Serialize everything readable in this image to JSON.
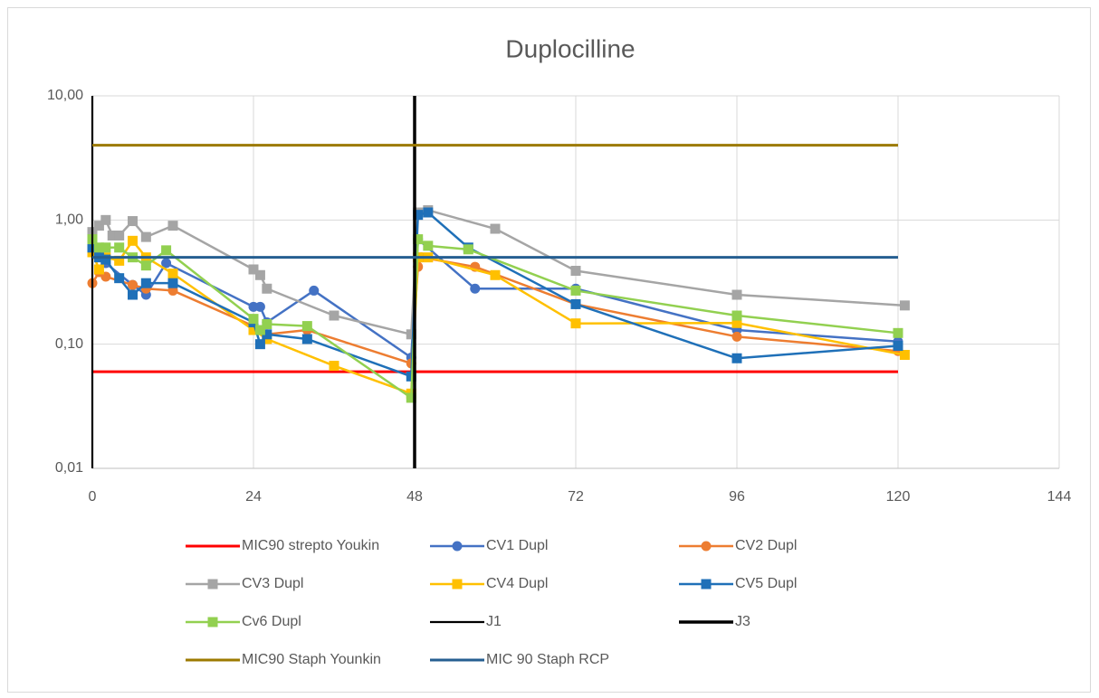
{
  "chart_data": {
    "type": "line",
    "title": "Duplocilline",
    "ylog": true,
    "grid": true,
    "legend": "bottom",
    "xlim": [
      0,
      144
    ],
    "xticks": [
      0,
      24,
      48,
      72,
      96,
      120,
      144
    ],
    "ylim": [
      0.01,
      10
    ],
    "yticks": [
      {
        "value": 10,
        "label": "10,00"
      },
      {
        "value": 1,
        "label": "1,00"
      },
      {
        "value": 0.1,
        "label": "0,10"
      },
      {
        "value": 0.01,
        "label": "0,01"
      }
    ],
    "series": [
      {
        "name": "MIC90 strepto Youkin",
        "color": "#ff0000",
        "width": 3,
        "x": [
          0,
          120
        ],
        "values": [
          0.06,
          0.06
        ]
      },
      {
        "name": "CV1 Dupl",
        "color": "#4472c4",
        "width": 2.5,
        "marker": "circle",
        "x": [
          0,
          1,
          2,
          6,
          8,
          11,
          24,
          25,
          26,
          33,
          47.5,
          48.5,
          57,
          72,
          96,
          120
        ],
        "values": [
          0.65,
          0.55,
          0.45,
          0.3,
          0.25,
          0.45,
          0.2,
          0.2,
          0.15,
          0.27,
          0.078,
          0.7,
          0.28,
          0.28,
          0.13,
          0.105
        ]
      },
      {
        "name": "CV2 Dupl",
        "color": "#ed7d31",
        "width": 2.5,
        "marker": "circle",
        "x": [
          0,
          1,
          2,
          6,
          8,
          12,
          24,
          26,
          32,
          47.5,
          48.5,
          49,
          57,
          72,
          96,
          120
        ],
        "values": [
          0.31,
          0.38,
          0.35,
          0.3,
          0.28,
          0.27,
          0.14,
          0.12,
          0.13,
          0.07,
          0.42,
          0.5,
          0.42,
          0.21,
          0.115,
          0.088
        ]
      },
      {
        "name": "CV3 Dupl",
        "color": "#a5a5a5",
        "width": 2.5,
        "marker": "square",
        "x": [
          0,
          1,
          2,
          3,
          4,
          6,
          8,
          12,
          24,
          25,
          26,
          36,
          47.5,
          48.5,
          50,
          60,
          72,
          96,
          121
        ],
        "values": [
          0.8,
          0.9,
          1.0,
          0.75,
          0.75,
          0.98,
          0.73,
          0.9,
          0.4,
          0.36,
          0.28,
          0.17,
          0.12,
          1.15,
          1.2,
          0.85,
          0.39,
          0.25,
          0.205
        ]
      },
      {
        "name": "CV4 Dupl",
        "color": "#ffc000",
        "width": 2.5,
        "marker": "square",
        "x": [
          0,
          1,
          2,
          4,
          6,
          8,
          12,
          24,
          26,
          36,
          47.5,
          48.5,
          50,
          60,
          72,
          96,
          121
        ],
        "values": [
          0.55,
          0.4,
          0.5,
          0.47,
          0.68,
          0.5,
          0.37,
          0.13,
          0.11,
          0.067,
          0.04,
          0.5,
          0.5,
          0.36,
          0.147,
          0.148,
          0.082
        ]
      },
      {
        "name": "CV5 Dupl",
        "color": "#1f70b8",
        "width": 2.5,
        "marker": "square",
        "x": [
          0,
          1,
          2,
          4,
          6,
          8,
          12,
          24,
          25,
          26,
          32,
          47.5,
          48.5,
          50,
          56,
          72,
          96,
          120
        ],
        "values": [
          0.6,
          0.5,
          0.48,
          0.34,
          0.25,
          0.31,
          0.31,
          0.15,
          0.1,
          0.12,
          0.11,
          0.055,
          1.1,
          1.15,
          0.6,
          0.21,
          0.077,
          0.097
        ]
      },
      {
        "name": "Cv6 Dupl",
        "color": "#92d050",
        "width": 2.5,
        "marker": "square",
        "x": [
          0,
          1,
          2,
          4,
          6,
          8,
          11,
          24,
          25,
          26,
          32,
          47.5,
          48.5,
          50,
          56,
          72,
          96,
          120
        ],
        "values": [
          0.7,
          0.6,
          0.6,
          0.6,
          0.5,
          0.43,
          0.57,
          0.16,
          0.13,
          0.145,
          0.14,
          0.037,
          0.7,
          0.62,
          0.58,
          0.27,
          0.17,
          0.123
        ]
      },
      {
        "name": "J1",
        "color": "#000000",
        "width": 2.2,
        "x": [
          0,
          0
        ],
        "values": [
          0.01,
          10
        ]
      },
      {
        "name": "J3",
        "color": "#000000",
        "width": 3.5,
        "x": [
          48,
          48
        ],
        "values": [
          0.01,
          10
        ]
      },
      {
        "name": "MIC90 Staph Younkin",
        "color": "#9c7a00",
        "width": 3,
        "x": [
          0,
          120
        ],
        "values": [
          4,
          4
        ]
      },
      {
        "name": "MIC 90 Staph RCP",
        "color": "#255e91",
        "width": 3,
        "x": [
          0,
          120
        ],
        "values": [
          0.5,
          0.5
        ]
      }
    ]
  }
}
